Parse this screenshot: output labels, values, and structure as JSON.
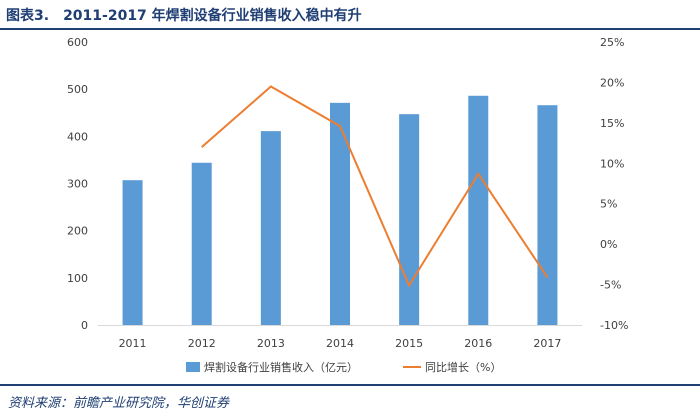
{
  "header": {
    "label": "图表3.",
    "title": "2011-2017 年焊割设备行业销售收入稳中有升"
  },
  "source": "资料来源：前瞻产业研究院，华创证券",
  "chart_data": {
    "type": "bar",
    "categories": [
      "2011",
      "2012",
      "2013",
      "2014",
      "2015",
      "2016",
      "2017"
    ],
    "series": [
      {
        "name": "焊割设备行业销售收入（亿元）",
        "type": "bar",
        "axis": "left",
        "color": "#5b9bd5",
        "values": [
          307,
          344,
          411,
          471,
          447,
          486,
          466
        ]
      },
      {
        "name": "同比增长（%）",
        "type": "line",
        "axis": "right",
        "color": "#ed7d31",
        "values": [
          null,
          12.0,
          19.5,
          14.6,
          -5.1,
          8.7,
          -4.1
        ]
      }
    ],
    "y_left": {
      "min": 0,
      "max": 600,
      "ticks": [
        "0",
        "100",
        "200",
        "300",
        "400",
        "500",
        "600"
      ]
    },
    "y_right": {
      "min": -10,
      "max": 25,
      "ticks": [
        "-10%",
        "-5%",
        "0%",
        "5%",
        "10%",
        "15%",
        "20%",
        "25%"
      ]
    },
    "legend": "bottom",
    "grid": false
  }
}
